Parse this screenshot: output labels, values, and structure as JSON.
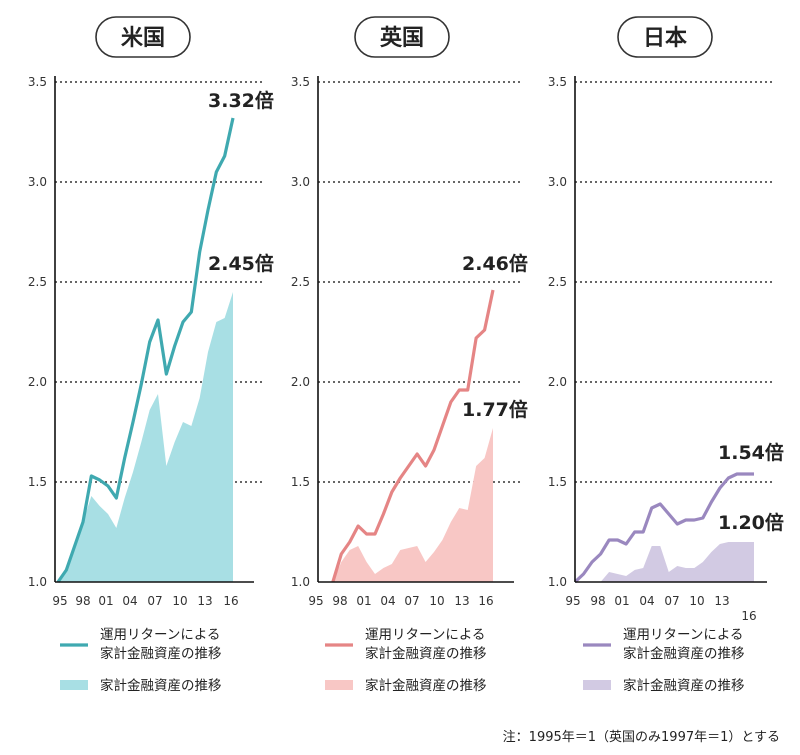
{
  "footnote": "注：1995年＝1（英国のみ1997年＝1）とする",
  "chart_data": [
    {
      "type": "line",
      "title": "米国",
      "ylim": [
        1.0,
        3.5
      ],
      "y_ticks": [
        "1.0",
        "1.5",
        "2.0",
        "2.5",
        "3.0",
        "3.5"
      ],
      "x_ticks": [
        "95",
        "98",
        "01",
        "04",
        "07",
        "10",
        "13",
        "16"
      ],
      "grid": true,
      "colors": {
        "line": "#3fa9b0",
        "area": "#a8dfe4"
      },
      "series": [
        {
          "name": "運用リターンによる家計金融資産の推移",
          "kind": "line",
          "x": [
            1995,
            1996,
            1997,
            1998,
            1999,
            2000,
            2001,
            2002,
            2003,
            2004,
            2005,
            2006,
            2007,
            2008,
            2009,
            2010,
            2011,
            2012,
            2013,
            2014,
            2015,
            2016
          ],
          "values": [
            1.0,
            1.06,
            1.18,
            1.3,
            1.53,
            1.51,
            1.48,
            1.42,
            1.62,
            1.8,
            1.99,
            2.2,
            2.31,
            2.04,
            2.18,
            2.3,
            2.35,
            2.65,
            2.86,
            3.05,
            3.13,
            3.32
          ]
        },
        {
          "name": "家計金融資産の推移",
          "kind": "area",
          "x": [
            1995,
            1996,
            1997,
            1998,
            1999,
            2000,
            2001,
            2002,
            2003,
            2004,
            2005,
            2006,
            2007,
            2008,
            2009,
            2010,
            2011,
            2012,
            2013,
            2014,
            2015,
            2016
          ],
          "values": [
            1.0,
            1.06,
            1.18,
            1.3,
            1.43,
            1.38,
            1.34,
            1.27,
            1.42,
            1.55,
            1.7,
            1.86,
            1.94,
            1.58,
            1.7,
            1.8,
            1.78,
            1.92,
            2.15,
            2.3,
            2.32,
            2.45
          ]
        }
      ],
      "annotations": [
        "3.32倍",
        "2.45倍"
      ]
    },
    {
      "type": "line",
      "title": "英国",
      "ylim": [
        1.0,
        3.5
      ],
      "y_ticks": [
        "1.0",
        "1.5",
        "2.0",
        "2.5",
        "3.0",
        "3.5"
      ],
      "x_ticks": [
        "95",
        "98",
        "01",
        "04",
        "07",
        "10",
        "13",
        "16"
      ],
      "grid": true,
      "colors": {
        "line": "#e58585",
        "area": "#f8c7c5"
      },
      "series": [
        {
          "name": "運用リターンによる家計金融資産の推移",
          "kind": "line",
          "x": [
            1997,
            1998,
            1999,
            2000,
            2001,
            2002,
            2003,
            2004,
            2005,
            2006,
            2007,
            2008,
            2009,
            2010,
            2011,
            2012,
            2013,
            2014,
            2015,
            2016
          ],
          "values": [
            1.0,
            1.14,
            1.2,
            1.28,
            1.24,
            1.24,
            1.34,
            1.45,
            1.52,
            1.58,
            1.64,
            1.58,
            1.66,
            1.78,
            1.9,
            1.96,
            1.96,
            2.22,
            2.26,
            2.46
          ]
        },
        {
          "name": "家計金融資産の推移",
          "kind": "area",
          "x": [
            1997,
            1998,
            1999,
            2000,
            2001,
            2002,
            2003,
            2004,
            2005,
            2006,
            2007,
            2008,
            2009,
            2010,
            2011,
            2012,
            2013,
            2014,
            2015,
            2016
          ],
          "values": [
            1.0,
            1.1,
            1.16,
            1.18,
            1.1,
            1.04,
            1.07,
            1.09,
            1.16,
            1.17,
            1.18,
            1.1,
            1.15,
            1.21,
            1.3,
            1.37,
            1.36,
            1.58,
            1.62,
            1.77
          ]
        }
      ],
      "annotations": [
        "2.46倍",
        "1.77倍"
      ]
    },
    {
      "type": "line",
      "title": "日本",
      "ylim": [
        1.0,
        3.5
      ],
      "y_ticks": [
        "1.0",
        "1.5",
        "2.0",
        "2.5",
        "3.0",
        "3.5"
      ],
      "x_ticks": [
        "95",
        "98",
        "01",
        "04",
        "07",
        "10",
        "13"
      ],
      "x_tick_extra": "16",
      "grid": true,
      "colors": {
        "line": "#9a88bf",
        "area": "#d2cae3"
      },
      "series": [
        {
          "name": "運用リターンによる家計金融資産の推移",
          "kind": "line",
          "x": [
            1995,
            1996,
            1997,
            1998,
            1999,
            2000,
            2001,
            2002,
            2003,
            2004,
            2005,
            2006,
            2007,
            2008,
            2009,
            2010,
            2011,
            2012,
            2013,
            2014,
            2015,
            2016
          ],
          "values": [
            1.0,
            1.04,
            1.1,
            1.14,
            1.21,
            1.21,
            1.19,
            1.25,
            1.25,
            1.37,
            1.39,
            1.34,
            1.29,
            1.31,
            1.31,
            1.32,
            1.4,
            1.47,
            1.52,
            1.54,
            1.54,
            1.54
          ]
        },
        {
          "name": "家計金融資産の推移",
          "kind": "area",
          "x": [
            1995,
            1996,
            1997,
            1998,
            1999,
            2000,
            2001,
            2002,
            2003,
            2004,
            2005,
            2006,
            2007,
            2008,
            2009,
            2010,
            2011,
            2012,
            2013,
            2014,
            2015,
            2016
          ],
          "values": [
            1.0,
            1.0,
            1.0,
            1.0,
            1.05,
            1.04,
            1.03,
            1.06,
            1.07,
            1.18,
            1.18,
            1.05,
            1.08,
            1.07,
            1.07,
            1.1,
            1.15,
            1.19,
            1.2,
            1.2,
            1.2,
            1.2
          ]
        }
      ],
      "annotations": [
        "1.54倍",
        "1.20倍"
      ]
    }
  ]
}
